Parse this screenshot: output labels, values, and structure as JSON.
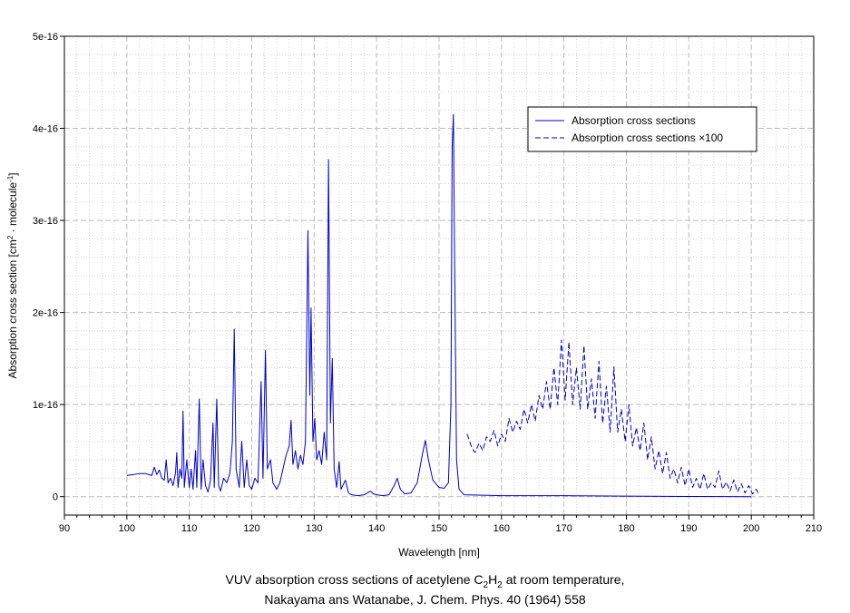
{
  "chart_data": {
    "type": "line",
    "xlabel": "Wavelength [nm]",
    "ylabel": {
      "prefix": "Absorption cross section [cm",
      "sup1": "2",
      "mid": " · molecule",
      "sup2": "-1",
      "suffix": "]"
    },
    "xlim": [
      90,
      210
    ],
    "ylim": [
      -2e-17,
      5e-16
    ],
    "x_ticks": [
      90,
      100,
      110,
      120,
      130,
      140,
      150,
      160,
      170,
      180,
      190,
      200,
      210
    ],
    "x_tick_labels": [
      "90",
      "100",
      "110",
      "120",
      "130",
      "140",
      "150",
      "160",
      "170",
      "180",
      "190",
      "200",
      "210"
    ],
    "y_ticks": [
      0,
      1e-16,
      2e-16,
      3e-16,
      4e-16,
      5e-16
    ],
    "y_tick_labels": [
      "0",
      "1e-16",
      "2e-16",
      "3e-16",
      "4e-16",
      "5e-16"
    ],
    "grid": true,
    "legend_position": "top-right",
    "series": [
      {
        "name": "Absorption cross sections",
        "style": "solid",
        "color": "#0000cc",
        "points": [
          [
            100.0,
            2.3e-17
          ],
          [
            101.0,
            2.4e-17
          ],
          [
            102.0,
            2.5e-17
          ],
          [
            103.0,
            2.5e-17
          ],
          [
            104.0,
            2.3e-17
          ],
          [
            104.4,
            3.2e-17
          ],
          [
            104.8,
            2.4e-17
          ],
          [
            105.2,
            2.9e-17
          ],
          [
            105.6,
            2e-17
          ],
          [
            106.0,
            1.8e-17
          ],
          [
            106.3,
            4e-17
          ],
          [
            106.6,
            1.5e-17
          ],
          [
            107.0,
            2e-17
          ],
          [
            107.4,
            1.2e-17
          ],
          [
            107.8,
            2.6e-17
          ],
          [
            108.0,
            4.8e-17
          ],
          [
            108.2,
            1e-17
          ],
          [
            108.5,
            3e-17
          ],
          [
            108.8,
            2e-17
          ],
          [
            109.0,
            9.3e-17
          ],
          [
            109.2,
            1e-17
          ],
          [
            109.6,
            4e-17
          ],
          [
            110.0,
            1e-17
          ],
          [
            110.3,
            3e-17
          ],
          [
            110.6,
            8e-18
          ],
          [
            111.0,
            5e-17
          ],
          [
            111.2,
            1e-17
          ],
          [
            111.6,
            1.06e-16
          ],
          [
            111.9,
            8e-18
          ],
          [
            112.2,
            4e-17
          ],
          [
            112.6,
            1.2e-17
          ],
          [
            113.0,
            5e-18
          ],
          [
            113.4,
            1.8e-17
          ],
          [
            113.8,
            8e-17
          ],
          [
            114.0,
            1e-17
          ],
          [
            114.4,
            1.06e-16
          ],
          [
            114.7,
            1.2e-17
          ],
          [
            115.0,
            6e-18
          ],
          [
            115.5,
            2e-17
          ],
          [
            116.0,
            1.5e-17
          ],
          [
            116.5,
            2.5e-17
          ],
          [
            116.9,
            6e-17
          ],
          [
            117.2,
            1.82e-16
          ],
          [
            117.5,
            3e-17
          ],
          [
            118.0,
            1e-17
          ],
          [
            118.4,
            6e-17
          ],
          [
            118.8,
            1e-17
          ],
          [
            119.2,
            4e-17
          ],
          [
            119.6,
            1.2e-17
          ],
          [
            120.0,
            8e-18
          ],
          [
            120.5,
            2e-17
          ],
          [
            121.0,
            1.5e-17
          ],
          [
            121.5,
            1.25e-16
          ],
          [
            121.8,
            2e-17
          ],
          [
            122.2,
            1.59e-16
          ],
          [
            122.5,
            3e-17
          ],
          [
            123.0,
            4e-17
          ],
          [
            123.4,
            1.5e-17
          ],
          [
            124.0,
            8e-18
          ],
          [
            124.5,
            1.5e-17
          ],
          [
            125.0,
            3e-17
          ],
          [
            125.5,
            4.5e-17
          ],
          [
            126.0,
            5.5e-17
          ],
          [
            126.3,
            8.3e-17
          ],
          [
            126.6,
            3.5e-17
          ],
          [
            127.0,
            5e-17
          ],
          [
            127.4,
            3e-17
          ],
          [
            127.8,
            4.5e-17
          ],
          [
            128.2,
            3.5e-17
          ],
          [
            128.6,
            6e-17
          ],
          [
            129.0,
            2.89e-16
          ],
          [
            129.3,
            1.1e-16
          ],
          [
            129.5,
            2.05e-16
          ],
          [
            129.8,
            6e-17
          ],
          [
            130.1,
            8.5e-17
          ],
          [
            130.4,
            4e-17
          ],
          [
            130.8,
            5e-17
          ],
          [
            131.2,
            3.5e-17
          ],
          [
            131.6,
            7e-17
          ],
          [
            132.0,
            4e-17
          ],
          [
            132.3,
            3.66e-16
          ],
          [
            132.6,
            8e-17
          ],
          [
            132.9,
            1.5e-16
          ],
          [
            133.2,
            3e-17
          ],
          [
            133.6,
            1e-17
          ],
          [
            134.0,
            3.8e-17
          ],
          [
            134.3,
            8e-18
          ],
          [
            135.0,
            1.8e-17
          ],
          [
            135.5,
            4e-18
          ],
          [
            136.0,
            2e-18
          ],
          [
            137.0,
            1e-18
          ],
          [
            138.0,
            2e-18
          ],
          [
            139.0,
            6e-18
          ],
          [
            139.5,
            3e-18
          ],
          [
            140.0,
            2e-18
          ],
          [
            141.0,
            1e-18
          ],
          [
            142.0,
            2e-18
          ],
          [
            142.8,
            1.2e-17
          ],
          [
            143.3,
            2e-17
          ],
          [
            143.8,
            8e-18
          ],
          [
            144.5,
            3e-18
          ],
          [
            145.5,
            4e-18
          ],
          [
            146.5,
            1.5e-17
          ],
          [
            147.3,
            4.5e-17
          ],
          [
            147.8,
            6.1e-17
          ],
          [
            148.3,
            4e-17
          ],
          [
            149.0,
            1.8e-17
          ],
          [
            150.0,
            1e-17
          ],
          [
            150.8,
            9e-18
          ],
          [
            151.5,
            1.5e-17
          ],
          [
            151.9,
            1e-16
          ],
          [
            152.1,
            3.8e-16
          ],
          [
            152.3,
            4.15e-16
          ],
          [
            152.5,
            2.5e-16
          ],
          [
            152.8,
            4e-17
          ],
          [
            153.2,
            8e-18
          ],
          [
            154.0,
            2e-18
          ],
          [
            160.0,
            1e-18
          ],
          [
            170.0,
            1e-18
          ],
          [
            180.0,
            5e-19
          ],
          [
            190.0,
            2e-19
          ],
          [
            200.0,
            0.0
          ]
        ]
      },
      {
        "name": "Absorption cross sections ×100",
        "style": "dashed",
        "color": "#0000cc",
        "points": [
          [
            154.5,
            6.8e-17
          ],
          [
            155.3,
            5.2e-17
          ],
          [
            155.8,
            4.8e-17
          ],
          [
            156.4,
            5.8e-17
          ],
          [
            157.0,
            5e-17
          ],
          [
            157.6,
            6.5e-17
          ],
          [
            158.2,
            6e-17
          ],
          [
            158.8,
            7.2e-17
          ],
          [
            159.4,
            5.5e-17
          ],
          [
            160.0,
            6.8e-17
          ],
          [
            160.6,
            6e-17
          ],
          [
            161.2,
            8.5e-17
          ],
          [
            161.8,
            7e-17
          ],
          [
            162.4,
            8.2e-17
          ],
          [
            163.0,
            7.3e-17
          ],
          [
            163.6,
            9.5e-17
          ],
          [
            164.2,
            8e-17
          ],
          [
            164.8,
            1e-16
          ],
          [
            165.4,
            8.2e-17
          ],
          [
            166.0,
            1.1e-16
          ],
          [
            166.6,
            9.5e-17
          ],
          [
            167.2,
            1.25e-16
          ],
          [
            167.8,
            9.5e-17
          ],
          [
            168.4,
            1.4e-16
          ],
          [
            169.0,
            1e-16
          ],
          [
            169.6,
            1.7e-16
          ],
          [
            170.2,
            1.05e-16
          ],
          [
            170.8,
            1.68e-16
          ],
          [
            171.4,
            1e-16
          ],
          [
            172.0,
            1.4e-16
          ],
          [
            172.6,
            9.5e-17
          ],
          [
            173.2,
            1.64e-16
          ],
          [
            173.8,
            9.5e-17
          ],
          [
            174.4,
            1.28e-16
          ],
          [
            175.0,
            8.5e-17
          ],
          [
            175.6,
            1.47e-16
          ],
          [
            176.2,
            8e-17
          ],
          [
            176.8,
            1.2e-16
          ],
          [
            177.4,
            7e-17
          ],
          [
            178.0,
            1.41e-16
          ],
          [
            178.6,
            7e-17
          ],
          [
            179.2,
            9.5e-17
          ],
          [
            179.8,
            6e-17
          ],
          [
            180.4,
            1e-16
          ],
          [
            181.0,
            5.5e-17
          ],
          [
            181.6,
            7.5e-17
          ],
          [
            182.2,
            5e-17
          ],
          [
            182.8,
            8e-17
          ],
          [
            183.4,
            4e-17
          ],
          [
            184.0,
            6.5e-17
          ],
          [
            184.6,
            3e-17
          ],
          [
            185.2,
            5e-17
          ],
          [
            185.8,
            2.5e-17
          ],
          [
            186.4,
            4.8e-17
          ],
          [
            187.0,
            2e-17
          ],
          [
            187.6,
            3e-17
          ],
          [
            188.2,
            1.5e-17
          ],
          [
            188.8,
            3.2e-17
          ],
          [
            189.4,
            1.2e-17
          ],
          [
            190.0,
            3e-17
          ],
          [
            190.6,
            1e-17
          ],
          [
            191.2,
            2e-17
          ],
          [
            191.8,
            8e-18
          ],
          [
            192.4,
            2.5e-17
          ],
          [
            193.0,
            8e-18
          ],
          [
            193.6,
            1.5e-17
          ],
          [
            194.2,
            1e-17
          ],
          [
            194.8,
            2.8e-17
          ],
          [
            195.4,
            8e-18
          ],
          [
            196.0,
            1.6e-17
          ],
          [
            196.6,
            6e-18
          ],
          [
            197.2,
            1.8e-17
          ],
          [
            197.8,
            5e-18
          ],
          [
            198.4,
            1.4e-17
          ],
          [
            199.0,
            4e-18
          ],
          [
            199.6,
            1.2e-17
          ],
          [
            200.2,
            3e-18
          ],
          [
            200.8,
            8e-18
          ],
          [
            201.2,
            3e-18
          ]
        ]
      }
    ]
  },
  "caption": {
    "line1_a": "VUV absorption cross sections of acetylene C",
    "line1_sub1": "2",
    "line1_b": "H",
    "line1_sub2": "2",
    "line1_c": " at room temperature,",
    "line2": "Nakayama ans Watanabe, J. Chem. Phys. 40 (1964) 558"
  }
}
